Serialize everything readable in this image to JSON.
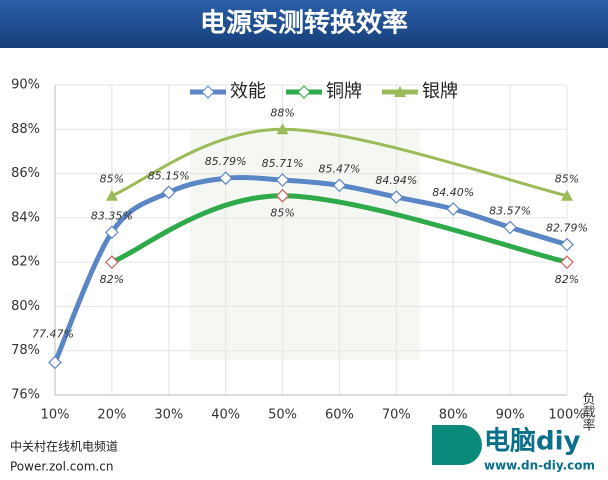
{
  "chart_data": {
    "type": "line",
    "title": "电源实测转换效率",
    "xlabel": "负载率",
    "xlim": [
      10,
      100
    ],
    "xticks": [
      {
        "value": 10,
        "label": "10%"
      },
      {
        "value": 20,
        "label": "20%"
      },
      {
        "value": 30,
        "label": "30%"
      },
      {
        "value": 40,
        "label": "40%"
      },
      {
        "value": 50,
        "label": "50%"
      },
      {
        "value": 60,
        "label": "60%"
      },
      {
        "value": 70,
        "label": "70%"
      },
      {
        "value": 80,
        "label": "80%"
      },
      {
        "value": 90,
        "label": "90%"
      },
      {
        "value": 100,
        "label": "100%"
      }
    ],
    "ylim": [
      76,
      90
    ],
    "yticks": [
      {
        "value": 76,
        "label": "76%"
      },
      {
        "value": 78,
        "label": "78%"
      },
      {
        "value": 80,
        "label": "80%"
      },
      {
        "value": 82,
        "label": "82%"
      },
      {
        "value": 84,
        "label": "84%"
      },
      {
        "value": 86,
        "label": "86%"
      },
      {
        "value": 88,
        "label": "88%"
      },
      {
        "value": 90,
        "label": "90%"
      }
    ],
    "grid": true,
    "series": [
      {
        "name": "效能",
        "color": "#5b86c6",
        "marker": "diamond",
        "x": [
          10,
          20,
          30,
          40,
          50,
          60,
          70,
          80,
          90,
          100
        ],
        "values": [
          77.47,
          83.35,
          85.15,
          85.79,
          85.71,
          85.47,
          84.94,
          84.4,
          83.57,
          82.79
        ],
        "value_labels": [
          "77.47%",
          "83.35%",
          "85.15%",
          "85.79%",
          "85.71%",
          "85.47%",
          "84.94%",
          "84.40%",
          "83.57%",
          "82.79%"
        ]
      },
      {
        "name": "铜牌",
        "color": "#2eaa4a",
        "marker": "diamond",
        "x": [
          20,
          50,
          100
        ],
        "values": [
          82,
          85,
          82
        ],
        "value_labels": [
          "82%",
          "85%",
          "82%"
        ]
      },
      {
        "name": "银牌",
        "color": "#9bbb59",
        "marker": "triangle",
        "x": [
          20,
          50,
          100
        ],
        "values": [
          85,
          88,
          85
        ],
        "value_labels": [
          "85%",
          "88%",
          "85%"
        ]
      }
    ]
  },
  "footer": {
    "source": "中关村在线机电频道",
    "url": "Power.zol.com.cn",
    "logo": "电脑diy",
    "logo_url": "www.dn-diy.com"
  }
}
